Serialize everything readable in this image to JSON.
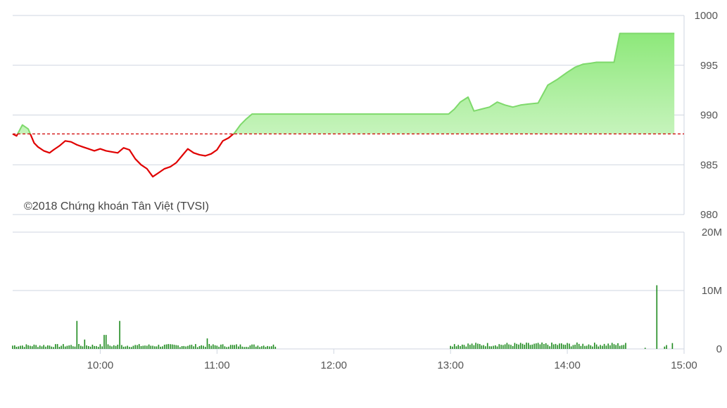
{
  "watermark": "©2018 Chứng khoán Tân Việt (TVSI)",
  "colors": {
    "up_line": "#7ed96b",
    "up_fill_top": "#8de87a",
    "up_fill_bottom": "#f4fdf1",
    "down_line": "#e00000",
    "reference": "#d00000",
    "grid": "#cfd6e0",
    "volume_bar": "#1e8a1e"
  },
  "chart_data": [
    {
      "type": "line",
      "title": "",
      "reference_value": 988.1,
      "ylim": [
        980,
        1000
      ],
      "y_ticks": [
        "980",
        "985",
        "990",
        "995",
        "1000"
      ],
      "x_range": [
        "09:15",
        "15:00"
      ],
      "x_ticks": [
        "10:00",
        "11:00",
        "12:00",
        "13:00",
        "14:00",
        "15:00"
      ],
      "grid": true,
      "series": [
        {
          "x": [
            "09:15",
            "09:17",
            "09:20",
            "09:23",
            "09:26",
            "09:28",
            "09:31",
            "09:34",
            "09:36",
            "09:39",
            "09:42",
            "09:45",
            "09:48",
            "09:51",
            "09:54",
            "09:57",
            "10:00",
            "10:03",
            "10:06",
            "10:09",
            "10:12",
            "10:15",
            "10:18",
            "10:21",
            "10:24",
            "10:27",
            "10:30",
            "10:33",
            "10:36",
            "10:39",
            "10:42",
            "10:45",
            "10:48",
            "10:51",
            "10:54",
            "10:57",
            "11:00",
            "11:03",
            "11:06",
            "11:09",
            "11:12",
            "11:15",
            "11:18",
            "11:20",
            "11:23",
            "11:26",
            "11:29",
            "12:59",
            "13:02",
            "13:05",
            "13:09",
            "13:12",
            "13:16",
            "13:20",
            "13:24",
            "13:28",
            "13:32",
            "13:36",
            "13:40",
            "13:45",
            "13:50",
            "13:55",
            "14:00",
            "14:04",
            "14:08",
            "14:12",
            "14:15",
            "14:18",
            "14:21",
            "14:24",
            "14:27",
            "14:30",
            "14:33",
            "14:36",
            "14:40",
            "14:45",
            "14:48",
            "14:52",
            "14:55"
          ],
          "values": [
            988.1,
            987.9,
            989.0,
            988.6,
            987.2,
            986.8,
            986.4,
            986.2,
            986.5,
            986.9,
            987.4,
            987.3,
            987.0,
            986.8,
            986.6,
            986.4,
            986.6,
            986.4,
            986.3,
            986.2,
            986.7,
            986.5,
            985.6,
            985.0,
            984.6,
            983.8,
            984.2,
            984.6,
            984.8,
            985.2,
            985.9,
            986.6,
            986.2,
            986.0,
            985.9,
            986.1,
            986.5,
            987.4,
            987.7,
            988.2,
            989.0,
            989.6,
            990.1,
            990.1,
            990.1,
            990.1,
            990.1,
            990.1,
            990.6,
            991.3,
            991.8,
            990.4,
            990.6,
            990.8,
            991.3,
            991.0,
            990.8,
            991.0,
            991.1,
            991.2,
            993.0,
            993.6,
            994.3,
            994.8,
            995.1,
            995.2,
            995.3,
            995.3,
            995.3,
            995.3,
            998.2,
            998.2,
            998.2,
            998.2,
            998.2,
            998.2,
            998.2,
            998.2,
            998.2
          ]
        }
      ]
    },
    {
      "type": "bar",
      "title": "",
      "ylim": [
        0,
        20
      ],
      "y_ticks": [
        "0",
        "10M",
        "20M"
      ],
      "x_range": [
        "09:15",
        "15:00"
      ],
      "x_ticks": [
        "10:00",
        "11:00",
        "12:00",
        "13:00",
        "14:00",
        "15:00"
      ],
      "grid": true,
      "spikes": [
        {
          "x": "09:48",
          "value": 4.8
        },
        {
          "x": "09:52",
          "value": 1.6
        },
        {
          "x": "10:02",
          "value": 2.4
        },
        {
          "x": "10:03",
          "value": 2.4
        },
        {
          "x": "10:10",
          "value": 4.8
        },
        {
          "x": "10:55",
          "value": 1.8
        },
        {
          "x": "14:46",
          "value": 10.9
        },
        {
          "x": "14:54",
          "value": 1.0
        }
      ],
      "sessions": [
        {
          "start": "09:15",
          "end": "11:30",
          "base_min": 0.3,
          "base_max": 0.85
        },
        {
          "start": "13:00",
          "end": "14:30",
          "base_min": 0.4,
          "base_max": 1.1
        },
        {
          "start": "14:40",
          "end": "14:57",
          "base_min": 0.15,
          "base_max": 0.7
        }
      ]
    }
  ]
}
